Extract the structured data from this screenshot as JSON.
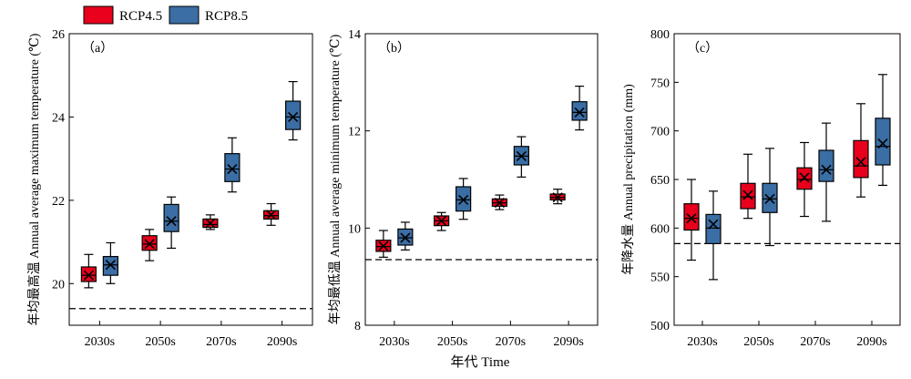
{
  "legend": {
    "rcp45_label": "RCP4.5",
    "rcp85_label": "RCP8.5",
    "rcp45_color": "#e8001c",
    "rcp85_color": "#3a6ea5"
  },
  "shared_xlabel": "年代 Time",
  "chart_data": [
    {
      "type": "boxplot",
      "panel_label": "（a）",
      "ylabel": "年均最高温 Annual average maximum temperature (℃)",
      "ylim": [
        19,
        26
      ],
      "yticks": [
        20,
        22,
        24,
        26
      ],
      "categories": [
        "2030s",
        "2050s",
        "2070s",
        "2090s"
      ],
      "reference_line": 19.4,
      "series": [
        {
          "name": "RCP4.5",
          "boxes": [
            {
              "min": 19.9,
              "q1": 20.05,
              "median": 20.2,
              "q3": 20.4,
              "max": 20.7,
              "mean": 20.2
            },
            {
              "min": 20.55,
              "q1": 20.8,
              "median": 20.95,
              "q3": 21.15,
              "max": 21.3,
              "mean": 20.95
            },
            {
              "min": 21.3,
              "q1": 21.35,
              "median": 21.42,
              "q3": 21.55,
              "max": 21.65,
              "mean": 21.45
            },
            {
              "min": 21.4,
              "q1": 21.55,
              "median": 21.63,
              "q3": 21.75,
              "max": 21.92,
              "mean": 21.65
            }
          ]
        },
        {
          "name": "RCP8.5",
          "boxes": [
            {
              "min": 20.0,
              "q1": 20.2,
              "median": 20.45,
              "q3": 20.65,
              "max": 20.98,
              "mean": 20.45
            },
            {
              "min": 20.85,
              "q1": 21.25,
              "median": 21.5,
              "q3": 21.9,
              "max": 22.08,
              "mean": 21.5
            },
            {
              "min": 22.2,
              "q1": 22.45,
              "median": 22.75,
              "q3": 23.12,
              "max": 23.5,
              "mean": 22.75
            },
            {
              "min": 23.45,
              "q1": 23.7,
              "median": 24.0,
              "q3": 24.38,
              "max": 24.85,
              "mean": 24.0
            }
          ]
        }
      ]
    },
    {
      "type": "boxplot",
      "panel_label": "（b）",
      "ylabel": "年均最低温 Annual average minimum temperature (℃)",
      "ylim": [
        8,
        14
      ],
      "yticks": [
        8,
        10,
        12,
        14
      ],
      "categories": [
        "2030s",
        "2050s",
        "2070s",
        "2090s"
      ],
      "reference_line": 9.35,
      "series": [
        {
          "name": "RCP4.5",
          "boxes": [
            {
              "min": 9.4,
              "q1": 9.52,
              "median": 9.62,
              "q3": 9.75,
              "max": 9.95,
              "mean": 9.63
            },
            {
              "min": 9.95,
              "q1": 10.05,
              "median": 10.15,
              "q3": 10.25,
              "max": 10.32,
              "mean": 10.15
            },
            {
              "min": 10.38,
              "q1": 10.45,
              "median": 10.52,
              "q3": 10.6,
              "max": 10.68,
              "mean": 10.52
            },
            {
              "min": 10.5,
              "q1": 10.58,
              "median": 10.63,
              "q3": 10.7,
              "max": 10.8,
              "mean": 10.63
            }
          ]
        },
        {
          "name": "RCP8.5",
          "boxes": [
            {
              "min": 9.55,
              "q1": 9.65,
              "median": 9.8,
              "q3": 9.98,
              "max": 10.12,
              "mean": 9.8
            },
            {
              "min": 10.18,
              "q1": 10.35,
              "median": 10.58,
              "q3": 10.85,
              "max": 11.02,
              "mean": 10.58
            },
            {
              "min": 11.05,
              "q1": 11.3,
              "median": 11.48,
              "q3": 11.68,
              "max": 11.88,
              "mean": 11.48
            },
            {
              "min": 12.02,
              "q1": 12.22,
              "median": 12.38,
              "q3": 12.6,
              "max": 12.92,
              "mean": 12.38
            }
          ]
        }
      ]
    },
    {
      "type": "boxplot",
      "panel_label": "（c）",
      "ylabel": "年降水量 Annual precipitation (mm)",
      "ylim": [
        500,
        800
      ],
      "yticks": [
        500,
        550,
        600,
        650,
        700,
        750,
        800
      ],
      "categories": [
        "2030s",
        "2050s",
        "2070s",
        "2090s"
      ],
      "reference_line": 584,
      "series": [
        {
          "name": "RCP4.5",
          "boxes": [
            {
              "min": 567,
              "q1": 598,
              "median": 610,
              "q3": 625,
              "max": 650,
              "mean": 610
            },
            {
              "min": 610,
              "q1": 620,
              "median": 632,
              "q3": 646,
              "max": 676,
              "mean": 634
            },
            {
              "min": 612,
              "q1": 640,
              "median": 650,
              "q3": 662,
              "max": 688,
              "mean": 652
            },
            {
              "min": 632,
              "q1": 652,
              "median": 664,
              "q3": 690,
              "max": 728,
              "mean": 668
            }
          ]
        },
        {
          "name": "RCP8.5",
          "boxes": [
            {
              "min": 547,
              "q1": 584,
              "median": 600,
              "q3": 614,
              "max": 638,
              "mean": 604
            },
            {
              "min": 582,
              "q1": 616,
              "median": 630,
              "q3": 646,
              "max": 682,
              "mean": 630
            },
            {
              "min": 607,
              "q1": 648,
              "median": 660,
              "q3": 680,
              "max": 708,
              "mean": 660
            },
            {
              "min": 644,
              "q1": 665,
              "median": 684,
              "q3": 713,
              "max": 758,
              "mean": 687
            }
          ]
        }
      ]
    }
  ]
}
